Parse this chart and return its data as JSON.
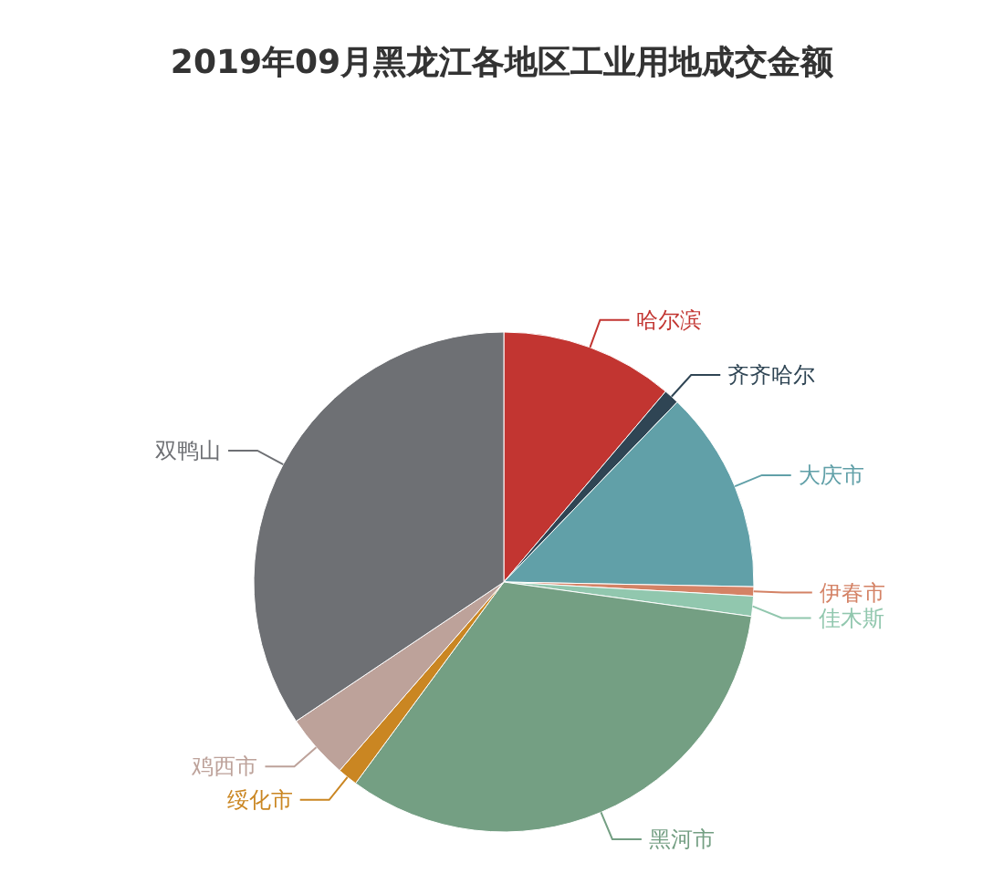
{
  "chart_data": {
    "type": "pie",
    "title": "2019年09月黑龙江各地区工业用地成交金额",
    "categories": [
      "哈尔滨",
      "齐齐哈尔",
      "大庆市",
      "伊春市",
      "佳木斯",
      "黑河市",
      "绥化市",
      "鸡西市",
      "双鸭山"
    ],
    "values": [
      11.2,
      1.0,
      13.1,
      0.6,
      1.3,
      32.9,
      1.3,
      4.2,
      34.4
    ],
    "colors": [
      "#c23531",
      "#2f4554",
      "#61a0a8",
      "#d48265",
      "#91c7ae",
      "#749f83",
      "#ca8622",
      "#bda29a",
      "#6e7074"
    ]
  }
}
